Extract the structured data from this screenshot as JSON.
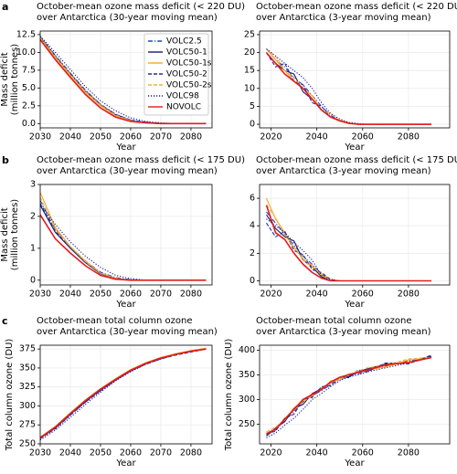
{
  "chart_data": [
    {
      "type": "line",
      "panel": "a",
      "title": [
        "October-mean ozone mass deficit (< 220 DU)",
        "over Antarctica (30-year moving mean)"
      ],
      "xlabel": "Year",
      "ylabel": [
        "Mass deficit",
        "(million tonnes)"
      ],
      "grid": true,
      "legend": "upper right",
      "x": [
        2030,
        2035,
        2040,
        2045,
        2050,
        2055,
        2060,
        2065,
        2070,
        2075,
        2080,
        2085
      ],
      "xlim": [
        2030,
        2087
      ],
      "xticks": [
        2030,
        2040,
        2050,
        2060,
        2070,
        2080
      ],
      "ylim": [
        -0.6,
        13
      ],
      "yticks": [
        {
          "value": 0,
          "label": "0.0"
        },
        2.5,
        {
          "value": 5,
          "label": "5.0"
        },
        7.5,
        {
          "value": 10,
          "label": "10.0"
        },
        12.5
      ],
      "series": [
        {
          "name": "VOLC2.5",
          "color": "#2244cc",
          "dash": "dashdot",
          "values": [
            12.2,
            9.6,
            7.1,
            4.7,
            2.7,
            1.3,
            0.5,
            0.2,
            0.05,
            0,
            0,
            0
          ]
        },
        {
          "name": "VOLC50-1",
          "color": "#1a1a6e",
          "dash": "solid",
          "values": [
            12.1,
            9.4,
            6.9,
            4.5,
            2.6,
            1.2,
            0.4,
            0.1,
            0,
            0,
            0,
            0
          ]
        },
        {
          "name": "VOLC50-1s",
          "color": "#f5a623",
          "dash": "solid",
          "values": [
            12,
            9.3,
            6.8,
            4.4,
            2.5,
            1.1,
            0.4,
            0.1,
            0,
            0,
            0,
            0
          ]
        },
        {
          "name": "VOLC50-2",
          "color": "#1f2f9f",
          "dash": "dashed",
          "values": [
            12.2,
            9.5,
            7,
            4.6,
            2.7,
            1.3,
            0.5,
            0.2,
            0,
            0,
            0,
            0
          ]
        },
        {
          "name": "VOLC50-2s",
          "color": "#f0b030",
          "dash": "dashed",
          "values": [
            12.1,
            9.4,
            6.9,
            4.5,
            2.6,
            1.2,
            0.4,
            0.1,
            0,
            0,
            0,
            0
          ]
        },
        {
          "name": "VOLC98",
          "color": "#1a1a8e",
          "dash": "dotted",
          "values": [
            12.3,
            10,
            7.6,
            5.2,
            3.2,
            1.8,
            0.8,
            0.3,
            0.1,
            0,
            0,
            0
          ]
        },
        {
          "name": "NOVOLC",
          "color": "#e41a1c",
          "dash": "solid",
          "values": [
            11.8,
            9,
            6.5,
            4.1,
            2.2,
            0.9,
            0.3,
            0.1,
            0,
            0,
            0,
            0
          ]
        }
      ]
    },
    {
      "type": "line",
      "title": [
        "October-mean ozone mass deficit (< 220 DU)",
        "over Antarctica (3-year moving mean)"
      ],
      "xlabel": "Year",
      "grid": true,
      "x": [
        2018,
        2022,
        2026,
        2030,
        2034,
        2038,
        2042,
        2046,
        2050,
        2054,
        2058,
        2062,
        2070,
        2080,
        2090
      ],
      "xlim": [
        2015,
        2098
      ],
      "xticks": [
        2020,
        2040,
        2060,
        2080
      ],
      "ylim": [
        -1,
        26
      ],
      "yticks": [
        0,
        5,
        10,
        15,
        20,
        25
      ],
      "series": [
        {
          "color": "#2244cc",
          "dash": "dashdot",
          "values": [
            21,
            18,
            16,
            13,
            11,
            8,
            5,
            2.5,
            1,
            0.3,
            0,
            0,
            0,
            0,
            0
          ]
        },
        {
          "color": "#1a1a6e",
          "dash": "solid",
          "values": [
            20,
            17,
            15,
            14,
            9,
            7,
            4,
            2,
            1,
            0.2,
            0,
            0,
            0,
            0,
            0
          ]
        },
        {
          "color": "#f5a623",
          "dash": "solid",
          "values": [
            21,
            18,
            15,
            12,
            10,
            8,
            4,
            2,
            0.8,
            0.2,
            0,
            0,
            0,
            0,
            0
          ]
        },
        {
          "color": "#1f2f9f",
          "dash": "dashed",
          "values": [
            20,
            16,
            17,
            12,
            11,
            6,
            5,
            2,
            1,
            0.3,
            0,
            0,
            0,
            0,
            0
          ]
        },
        {
          "color": "#f0b030",
          "dash": "dashed",
          "values": [
            21,
            19,
            15,
            13,
            10,
            7,
            4,
            3,
            1,
            0.2,
            0,
            0,
            0,
            0,
            0
          ]
        },
        {
          "color": "#1a1a8e",
          "dash": "dotted",
          "values": [
            21,
            19,
            17,
            15,
            13,
            10,
            6,
            3,
            1.5,
            0.5,
            0.2,
            0,
            0,
            0,
            0
          ]
        },
        {
          "color": "#e41a1c",
          "dash": "solid",
          "values": [
            20,
            17,
            14,
            12,
            10,
            7,
            4,
            2,
            1,
            0.3,
            0,
            0,
            0,
            0,
            0
          ]
        }
      ]
    },
    {
      "type": "line",
      "panel": "b",
      "title": [
        "October-mean ozone mass deficit (< 175 DU)",
        "over Antarctica (30-year moving mean)"
      ],
      "xlabel": "Year",
      "ylabel": [
        "Mass deficit",
        "(million tonnes)"
      ],
      "grid": true,
      "x": [
        2030,
        2035,
        2040,
        2045,
        2050,
        2055,
        2060,
        2065,
        2070,
        2075,
        2080,
        2085
      ],
      "xlim": [
        2030,
        2087
      ],
      "xticks": [
        2030,
        2040,
        2050,
        2060,
        2070,
        2080
      ],
      "ylim": [
        -0.15,
        3
      ],
      "yticks": [
        0,
        1,
        2,
        3
      ],
      "series": [
        {
          "color": "#2244cc",
          "dash": "dashdot",
          "values": [
            2.5,
            1.6,
            1.05,
            0.6,
            0.25,
            0.08,
            0.02,
            0,
            0,
            0,
            0,
            0
          ]
        },
        {
          "color": "#1a1a6e",
          "dash": "solid",
          "values": [
            2.35,
            1.5,
            1,
            0.55,
            0.2,
            0.05,
            0,
            0,
            0,
            0,
            0,
            0
          ]
        },
        {
          "color": "#f5a623",
          "dash": "solid",
          "values": [
            2.75,
            1.65,
            1.05,
            0.6,
            0.22,
            0.06,
            0,
            0,
            0,
            0,
            0,
            0
          ]
        },
        {
          "color": "#1f2f9f",
          "dash": "dashed",
          "values": [
            2.4,
            1.55,
            1,
            0.55,
            0.22,
            0.06,
            0,
            0,
            0,
            0,
            0,
            0
          ]
        },
        {
          "color": "#f0b030",
          "dash": "dashed",
          "values": [
            2.6,
            1.6,
            1.05,
            0.58,
            0.22,
            0.06,
            0,
            0,
            0,
            0,
            0,
            0
          ]
        },
        {
          "color": "#1a1a8e",
          "dash": "dotted",
          "values": [
            2.4,
            1.75,
            1.2,
            0.75,
            0.4,
            0.15,
            0.05,
            0,
            0,
            0,
            0,
            0
          ]
        },
        {
          "color": "#e41a1c",
          "dash": "solid",
          "values": [
            2.05,
            1.3,
            0.85,
            0.45,
            0.15,
            0.03,
            0,
            0,
            0,
            0,
            0,
            0
          ]
        }
      ]
    },
    {
      "type": "line",
      "title": [
        "October-mean ozone mass deficit (< 175 DU)",
        "over Antarctica (3-year moving mean)"
      ],
      "xlabel": "Year",
      "grid": true,
      "x": [
        2018,
        2022,
        2026,
        2030,
        2034,
        2038,
        2042,
        2046,
        2050,
        2054,
        2058,
        2062,
        2070,
        2080,
        2090
      ],
      "xlim": [
        2015,
        2098
      ],
      "xticks": [
        2020,
        2040,
        2060,
        2080
      ],
      "ylim": [
        -0.3,
        7
      ],
      "yticks": [
        0,
        2,
        4,
        6
      ],
      "series": [
        {
          "color": "#2244cc",
          "dash": "dashdot",
          "values": [
            5,
            4.2,
            3.4,
            2.6,
            1.8,
            1.2,
            0.5,
            0.1,
            0,
            0,
            0,
            0,
            0,
            0,
            0
          ]
        },
        {
          "color": "#1a1a6e",
          "dash": "solid",
          "values": [
            4.8,
            3.8,
            3.2,
            2.9,
            1.5,
            1,
            0.3,
            0,
            0,
            0,
            0,
            0,
            0,
            0,
            0
          ]
        },
        {
          "color": "#f5a623",
          "dash": "solid",
          "values": [
            6,
            4.5,
            3.5,
            2.4,
            1.6,
            1.1,
            0.4,
            0.1,
            0,
            0,
            0,
            0,
            0,
            0,
            0
          ]
        },
        {
          "color": "#1f2f9f",
          "dash": "dashed",
          "values": [
            4.2,
            3.2,
            3.6,
            2.2,
            1.9,
            0.8,
            0.6,
            0.1,
            0,
            0,
            0,
            0,
            0,
            0,
            0
          ]
        },
        {
          "color": "#f0b030",
          "dash": "dashed",
          "values": [
            5.5,
            4.6,
            3.3,
            2.5,
            1.5,
            1,
            0.5,
            0.1,
            0,
            0,
            0,
            0,
            0,
            0,
            0
          ]
        },
        {
          "color": "#1a1a8e",
          "dash": "dotted",
          "values": [
            4.5,
            4,
            3.5,
            2.8,
            2.2,
            1.5,
            0.4,
            0.1,
            0,
            0,
            0,
            0,
            0,
            0,
            0
          ]
        },
        {
          "color": "#e41a1c",
          "dash": "solid",
          "values": [
            5.5,
            3.5,
            3,
            2,
            1.2,
            0.6,
            0.2,
            0,
            0,
            0,
            0,
            0,
            0,
            0,
            0
          ]
        }
      ]
    },
    {
      "type": "line",
      "panel": "c",
      "title": [
        "October-mean total column ozone",
        "over Antarctica (30-year moving mean)"
      ],
      "xlabel": "Year",
      "ylabel": [
        "Total column ozone (DU)"
      ],
      "grid": true,
      "x": [
        2030,
        2035,
        2040,
        2045,
        2050,
        2055,
        2060,
        2065,
        2070,
        2075,
        2080,
        2085
      ],
      "xlim": [
        2030,
        2087
      ],
      "xticks": [
        2030,
        2040,
        2050,
        2060,
        2070,
        2080
      ],
      "ylim": [
        250,
        380
      ],
      "yticks": [
        250,
        275,
        300,
        325,
        350,
        375
      ],
      "series": [
        {
          "color": "#2244cc",
          "dash": "dashdot",
          "values": [
            257,
            271,
            288,
            305,
            320,
            334,
            346,
            355,
            362,
            368,
            372,
            375
          ]
        },
        {
          "color": "#1a1a6e",
          "dash": "solid",
          "values": [
            258,
            271,
            289,
            306,
            321,
            334,
            346,
            356,
            363,
            368,
            372,
            376
          ]
        },
        {
          "color": "#f5a623",
          "dash": "solid",
          "values": [
            259,
            273,
            291,
            308,
            323,
            336,
            348,
            357,
            364,
            369,
            373,
            376
          ]
        },
        {
          "color": "#1f2f9f",
          "dash": "dashed",
          "values": [
            257,
            270,
            288,
            305,
            320,
            334,
            346,
            355,
            362,
            367,
            371,
            375
          ]
        },
        {
          "color": "#f0b030",
          "dash": "dashed",
          "values": [
            259,
            272,
            290,
            307,
            322,
            335,
            347,
            356,
            363,
            368,
            372,
            375
          ]
        },
        {
          "color": "#1a1a8e",
          "dash": "dotted",
          "values": [
            255,
            268,
            285,
            302,
            318,
            333,
            345,
            355,
            362,
            368,
            372,
            375
          ]
        },
        {
          "color": "#e41a1c",
          "dash": "solid",
          "values": [
            258,
            272,
            290,
            307,
            322,
            335,
            347,
            356,
            363,
            368,
            372,
            375
          ]
        }
      ]
    },
    {
      "type": "line",
      "title": [
        "October-mean total column ozone",
        "over Antarctica (3-year moving mean)"
      ],
      "xlabel": "Year",
      "ylabel": [
        "Total column ozone (DU)"
      ],
      "grid": true,
      "x": [
        2018,
        2022,
        2026,
        2030,
        2034,
        2038,
        2042,
        2046,
        2050,
        2054,
        2058,
        2062,
        2070,
        2080,
        2090
      ],
      "xlim": [
        2015,
        2098
      ],
      "xticks": [
        2020,
        2040,
        2060,
        2080
      ],
      "ylim": [
        210,
        410
      ],
      "yticks": [
        250,
        300,
        350,
        400
      ],
      "series": [
        {
          "color": "#2244cc",
          "dash": "dashdot",
          "values": [
            228,
            238,
            258,
            275,
            295,
            308,
            318,
            330,
            340,
            348,
            352,
            358,
            368,
            378,
            386
          ]
        },
        {
          "color": "#1a1a6e",
          "dash": "solid",
          "values": [
            226,
            242,
            255,
            282,
            290,
            312,
            322,
            336,
            345,
            346,
            356,
            362,
            372,
            375,
            388
          ]
        },
        {
          "color": "#f5a623",
          "dash": "solid",
          "values": [
            232,
            240,
            262,
            278,
            298,
            306,
            324,
            333,
            342,
            352,
            354,
            360,
            366,
            380,
            384
          ]
        },
        {
          "color": "#1f2f9f",
          "dash": "dashed",
          "values": [
            230,
            236,
            262,
            270,
            300,
            304,
            326,
            328,
            346,
            344,
            360,
            356,
            374,
            372,
            390
          ]
        },
        {
          "color": "#f0b030",
          "dash": "dashed",
          "values": [
            234,
            244,
            258,
            284,
            294,
            310,
            320,
            338,
            340,
            350,
            358,
            364,
            370,
            382,
            386
          ]
        },
        {
          "color": "#1a1a8e",
          "dash": "dotted",
          "values": [
            222,
            232,
            248,
            262,
            280,
            300,
            312,
            326,
            338,
            346,
            350,
            356,
            364,
            374,
            386
          ]
        },
        {
          "color": "#e41a1c",
          "dash": "solid",
          "values": [
            230,
            240,
            260,
            280,
            300,
            310,
            320,
            335,
            345,
            350,
            355,
            360,
            370,
            375,
            385
          ]
        }
      ]
    }
  ]
}
